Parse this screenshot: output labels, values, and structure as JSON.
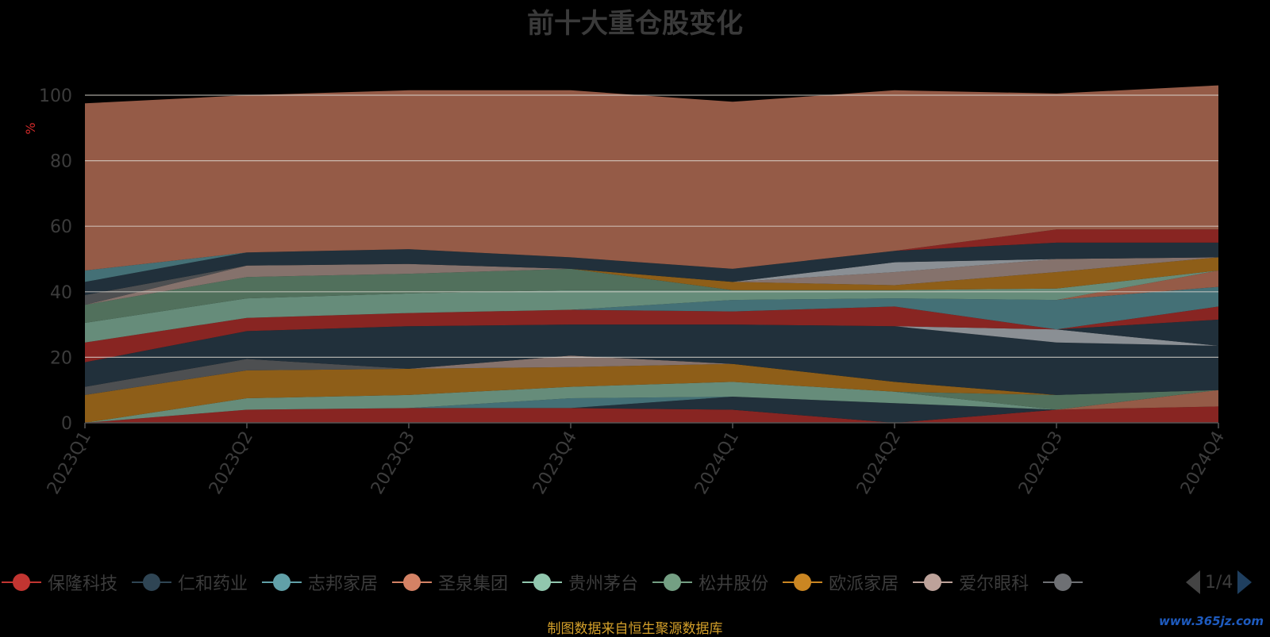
{
  "title": "前十大重仓股变化",
  "footer": "制图数据来自恒生聚源数据库",
  "watermark": "www.365jz.com",
  "legend_page": "1/4",
  "chart_data": {
    "type": "area",
    "title": "前十大重仓股变化",
    "ylabel": "%",
    "ylim": [
      0,
      100
    ],
    "yticks": [
      0,
      20,
      40,
      60,
      80,
      100
    ],
    "grid": true,
    "legend_position": "bottom",
    "categories": [
      "2023Q1",
      "2023Q2",
      "2023Q3",
      "2023Q4",
      "2024Q1",
      "2024Q2",
      "2024Q3",
      "2024Q4"
    ],
    "series": [
      {
        "name": "保隆科技",
        "color": "#c23531",
        "values": [
          0,
          4,
          4.5,
          4.5,
          4,
          0,
          4,
          5
        ]
      },
      {
        "name": "",
        "color": "#2f4554",
        "values": [
          0,
          0,
          0,
          0,
          4,
          6,
          0,
          0
        ]
      },
      {
        "name": "",
        "color": "#61a0a8",
        "values": [
          0,
          0,
          0,
          3,
          0,
          0,
          0,
          0
        ]
      },
      {
        "name": "",
        "color": "#d48265",
        "values": [
          0,
          0,
          0,
          0,
          0,
          0,
          0,
          5
        ]
      },
      {
        "name": "松井股份",
        "color": "#91c7ae",
        "values": [
          0,
          3.5,
          4,
          3.5,
          4.5,
          3.5,
          0,
          0
        ]
      },
      {
        "name": "",
        "color": "#749f83",
        "values": [
          0,
          0,
          0,
          0,
          0,
          0,
          4.5,
          0
        ]
      },
      {
        "name": "欧派家居",
        "color": "#ca8622",
        "values": [
          8.5,
          8.5,
          8,
          6,
          5.5,
          3,
          0,
          0
        ]
      },
      {
        "name": "",
        "color": "#bda29a",
        "values": [
          0,
          0,
          0,
          3.5,
          0,
          0,
          0,
          0
        ]
      },
      {
        "name": "",
        "color": "#6e7074",
        "values": [
          2.5,
          3.5,
          0,
          0,
          0,
          0,
          0,
          0
        ]
      },
      {
        "name": "仁和药业",
        "color": "#2f4554",
        "values": [
          7.5,
          8.5,
          13,
          9.5,
          12,
          17,
          16,
          13.5
        ]
      },
      {
        "name": "",
        "color": "#c4ccd3",
        "values": [
          0,
          0,
          0,
          0,
          0,
          0,
          4,
          0
        ]
      },
      {
        "name": "",
        "color": "#2f4554",
        "values": [
          0,
          0,
          0,
          0,
          0,
          0,
          0,
          8
        ]
      },
      {
        "name": "",
        "color": "#c23531",
        "values": [
          6,
          4,
          4,
          4.5,
          4,
          6,
          0,
          4
        ]
      },
      {
        "name": "志邦家居",
        "color": "#61a0a8",
        "values": [
          0,
          0,
          0,
          0,
          3.5,
          2.5,
          9,
          6
        ]
      },
      {
        "name": "圣泉集团",
        "color": "#d48265",
        "values": [
          0,
          0,
          0,
          0,
          0,
          0,
          0,
          5
        ]
      },
      {
        "name": "贵州茅台",
        "color": "#91c7ae",
        "values": [
          6,
          6,
          6,
          6,
          3,
          2.5,
          3.5,
          0
        ]
      },
      {
        "name": "松井股份",
        "color": "#749f83",
        "values": [
          5.5,
          6.5,
          6,
          6.5,
          0,
          0,
          0,
          0
        ]
      },
      {
        "name": "欧派家居",
        "color": "#ca8622",
        "values": [
          0,
          0,
          0,
          0,
          2.5,
          1.5,
          5,
          4
        ]
      },
      {
        "name": "爱尔眼科",
        "color": "#bda29a",
        "values": [
          0,
          3.5,
          3,
          0,
          0,
          4,
          4,
          0
        ]
      },
      {
        "name": "",
        "color": "#6e7074",
        "values": [
          3,
          0,
          0,
          0,
          0,
          0,
          0,
          0
        ]
      },
      {
        "name": "",
        "color": "#c4ccd3",
        "values": [
          0,
          0,
          0,
          0,
          0,
          3,
          0,
          0
        ]
      },
      {
        "name": "仁和药业",
        "color": "#2f4554",
        "values": [
          4,
          4,
          4.5,
          3.5,
          4,
          3.5,
          5,
          4.5
        ]
      },
      {
        "name": "",
        "color": "#c23531",
        "values": [
          0,
          0,
          0,
          0,
          0,
          0,
          4,
          4
        ]
      },
      {
        "name": "志邦家居",
        "color": "#61a0a8",
        "values": [
          3.5,
          0,
          0,
          0,
          0,
          0,
          0,
          0
        ]
      },
      {
        "name": "",
        "color": "#d48265",
        "values": [
          51,
          48,
          48.5,
          51,
          51,
          49,
          41.5,
          44
        ]
      }
    ]
  },
  "legend": {
    "items": [
      {
        "label": "保隆科技",
        "color": "#c23531"
      },
      {
        "label": "仁和药业",
        "color": "#2f4554"
      },
      {
        "label": "志邦家居",
        "color": "#61a0a8"
      },
      {
        "label": "圣泉集团",
        "color": "#d48265"
      },
      {
        "label": "贵州茅台",
        "color": "#91c7ae"
      },
      {
        "label": "松井股份",
        "color": "#749f83"
      },
      {
        "label": "欧派家居",
        "color": "#ca8622"
      },
      {
        "label": "爱尔眼科",
        "color": "#bda29a"
      },
      {
        "label": "",
        "color": "#6e7074"
      }
    ]
  }
}
